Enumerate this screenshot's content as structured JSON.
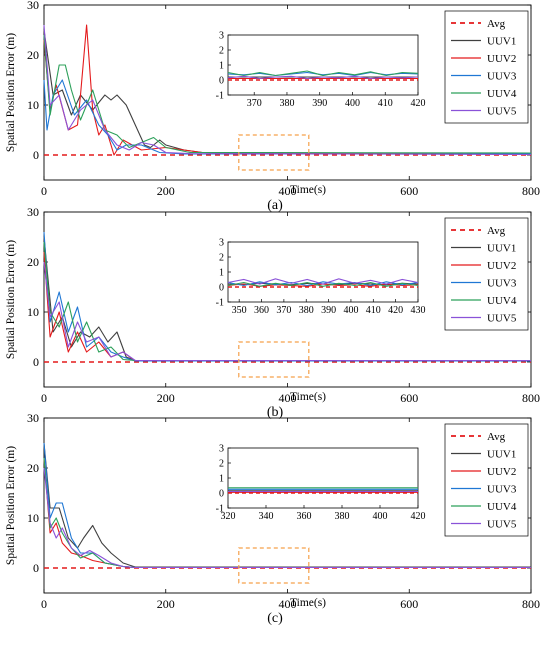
{
  "figure": {
    "ylabel": "Spatial Position Error (m)",
    "xlabel": "Time(s)"
  },
  "chart_data": [
    {
      "type": "line",
      "caption": "(a)",
      "xlim": [
        0,
        800
      ],
      "ylim": [
        -5,
        30
      ],
      "xticks": [
        0,
        200,
        400,
        600,
        800
      ],
      "yticks": [
        0,
        10,
        20,
        30
      ],
      "legend_position": "top-right",
      "highlight_box": {
        "x": [
          320,
          435
        ],
        "y": [
          -3,
          4
        ]
      },
      "series": [
        {
          "name": "Avg",
          "color": "#e41a1c",
          "dashed": true,
          "x": [
            0,
            800
          ],
          "y": [
            0,
            0
          ]
        },
        {
          "name": "UUV1",
          "color": "#404040",
          "x": [
            0,
            15,
            30,
            45,
            60,
            80,
            100,
            110,
            120,
            135,
            150,
            165,
            175,
            190,
            200,
            230,
            260,
            300,
            800
          ],
          "y": [
            25,
            12,
            13,
            8,
            12,
            9,
            12,
            11,
            12,
            10,
            6,
            2,
            1.5,
            3,
            2,
            1,
            0.5,
            0.3,
            0.3
          ]
        },
        {
          "name": "UUV2",
          "color": "#e41a1c",
          "x": [
            0,
            10,
            20,
            40,
            55,
            60,
            70,
            80,
            90,
            100,
            110,
            115,
            130,
            160,
            200,
            260,
            800
          ],
          "y": [
            23,
            9,
            14,
            5,
            6,
            12,
            26,
            9,
            4,
            6,
            2,
            0,
            3,
            1,
            1.5,
            0.5,
            0.2
          ]
        },
        {
          "name": "UUV3",
          "color": "#1f77d4",
          "x": [
            0,
            5,
            15,
            30,
            50,
            70,
            90,
            105,
            120,
            135,
            160,
            190,
            230,
            800
          ],
          "y": [
            15,
            5,
            12,
            15,
            8,
            11,
            6,
            4,
            1,
            2,
            2,
            0.5,
            0.2,
            0.2
          ]
        },
        {
          "name": "UUV4",
          "color": "#2ca05a",
          "x": [
            0,
            10,
            25,
            35,
            45,
            60,
            80,
            100,
            120,
            140,
            180,
            200,
            240,
            800
          ],
          "y": [
            24,
            8,
            18,
            18,
            13,
            7,
            13,
            5,
            4,
            1.5,
            3.5,
            1.5,
            0.5,
            0.4
          ]
        },
        {
          "name": "UUV5",
          "color": "#8a52d8",
          "x": [
            0,
            10,
            25,
            40,
            60,
            80,
            100,
            120,
            140,
            160,
            180,
            200,
            240,
            800
          ],
          "y": [
            26,
            10,
            12,
            5,
            9,
            11,
            5,
            2,
            1,
            2.5,
            2,
            0.5,
            0.3,
            0.1
          ]
        }
      ],
      "inset": {
        "xlim": [
          362,
          420
        ],
        "ylim": [
          -1,
          3
        ],
        "xticks": [
          370,
          380,
          390,
          400,
          410,
          420
        ],
        "yticks": [
          -1,
          0,
          1,
          2,
          3
        ],
        "series": [
          {
            "name": "Avg",
            "y": [
              0,
              0,
              0,
              0,
              0,
              0,
              0,
              0,
              0,
              0,
              0,
              0,
              0
            ]
          },
          {
            "name": "UUV1",
            "y": [
              0.2,
              0.2,
              0.2,
              0.2,
              0.2,
              0.2,
              0.2,
              0.2,
              0.2,
              0.2,
              0.2,
              0.2,
              0.2
            ]
          },
          {
            "name": "UUV2",
            "y": [
              0.1,
              0.1,
              0.1,
              0.1,
              0.1,
              0.1,
              0.1,
              0.1,
              0.1,
              0.1,
              0.1,
              0.1,
              0.1
            ]
          },
          {
            "name": "UUV3",
            "y": [
              0.4,
              0.35,
              0.45,
              0.3,
              0.4,
              0.5,
              0.35,
              0.45,
              0.3,
              0.5,
              0.35,
              0.45,
              0.4
            ]
          },
          {
            "name": "UUV4",
            "y": [
              0.5,
              0.3,
              0.5,
              0.3,
              0.45,
              0.6,
              0.3,
              0.5,
              0.35,
              0.55,
              0.3,
              0.5,
              0.45
            ]
          },
          {
            "name": "UUV5",
            "y": [
              0.15,
              0.25,
              0.1,
              0.2,
              0.25,
              0.1,
              0.2,
              0.15,
              0.25,
              0.1,
              0.2,
              0.15,
              0.2
            ]
          }
        ]
      }
    },
    {
      "type": "line",
      "caption": "(b)",
      "xlim": [
        0,
        800
      ],
      "ylim": [
        -5,
        30
      ],
      "xticks": [
        0,
        200,
        400,
        600,
        800
      ],
      "yticks": [
        0,
        10,
        20,
        30
      ],
      "legend_position": "top-right",
      "highlight_box": {
        "x": [
          320,
          435
        ],
        "y": [
          -3,
          4
        ]
      },
      "series": [
        {
          "name": "Avg",
          "color": "#e41a1c",
          "dashed": true,
          "x": [
            0,
            800
          ],
          "y": [
            0,
            0
          ]
        },
        {
          "name": "UUV1",
          "color": "#404040",
          "x": [
            0,
            15,
            30,
            45,
            60,
            75,
            90,
            105,
            120,
            135,
            150,
            800
          ],
          "y": [
            25,
            6,
            9,
            3,
            6,
            5,
            7,
            4,
            6,
            1,
            0.3,
            0.3
          ]
        },
        {
          "name": "UUV2",
          "color": "#e41a1c",
          "x": [
            0,
            10,
            25,
            40,
            55,
            70,
            90,
            110,
            130,
            150,
            800
          ],
          "y": [
            22,
            5,
            10,
            2,
            6,
            2,
            4,
            1,
            2,
            0.2,
            0.2
          ]
        },
        {
          "name": "UUV3",
          "color": "#1f77d4",
          "x": [
            0,
            10,
            25,
            40,
            55,
            70,
            90,
            110,
            130,
            150,
            800
          ],
          "y": [
            26,
            8,
            14,
            6,
            11,
            3,
            5,
            2,
            1,
            0.2,
            0.2
          ]
        },
        {
          "name": "UUV4",
          "color": "#2ca05a",
          "x": [
            0,
            10,
            25,
            40,
            55,
            70,
            90,
            110,
            130,
            150,
            800
          ],
          "y": [
            24,
            10,
            7,
            12,
            4,
            8,
            2,
            3,
            0.5,
            0.3,
            0.3
          ]
        },
        {
          "name": "UUV5",
          "color": "#8a52d8",
          "x": [
            0,
            10,
            25,
            40,
            55,
            70,
            90,
            110,
            130,
            150,
            800
          ],
          "y": [
            20,
            9,
            12,
            3,
            8,
            4,
            5,
            1,
            2,
            0.3,
            0.3
          ]
        }
      ],
      "inset": {
        "xlim": [
          345,
          430
        ],
        "ylim": [
          -1,
          3
        ],
        "xticks": [
          350,
          360,
          370,
          380,
          390,
          400,
          410,
          420,
          430
        ],
        "yticks": [
          -1,
          0,
          1,
          2,
          3
        ],
        "series": [
          {
            "name": "Avg",
            "y": [
              0,
              0,
              0,
              0,
              0,
              0,
              0,
              0,
              0,
              0,
              0,
              0,
              0
            ]
          },
          {
            "name": "UUV1",
            "y": [
              0.2,
              0.15,
              0.25,
              0.2,
              0.15,
              0.25,
              0.2,
              0.15,
              0.25,
              0.2,
              0.15,
              0.25,
              0.2
            ]
          },
          {
            "name": "UUV2",
            "y": [
              0.1,
              0.2,
              0.05,
              0.15,
              0.1,
              0.05,
              0.2,
              0.1,
              0.15,
              0.05,
              0.2,
              0.1,
              0.15
            ]
          },
          {
            "name": "UUV3",
            "y": [
              0.3,
              0.1,
              0.35,
              0.15,
              0.3,
              0.1,
              0.35,
              0.2,
              0.3,
              0.1,
              0.35,
              0.15,
              0.3
            ]
          },
          {
            "name": "UUV4",
            "y": [
              0.1,
              0.3,
              0.05,
              0.25,
              0.1,
              0.3,
              0.05,
              0.25,
              0.1,
              0.3,
              0.05,
              0.25,
              0.1
            ]
          },
          {
            "name": "UUV5",
            "y": [
              0.3,
              0.5,
              0.2,
              0.55,
              0.25,
              0.5,
              0.2,
              0.55,
              0.25,
              0.45,
              0.2,
              0.5,
              0.3
            ]
          }
        ]
      }
    },
    {
      "type": "line",
      "caption": "(c)",
      "xlim": [
        0,
        800
      ],
      "ylim": [
        -5,
        30
      ],
      "xticks": [
        0,
        200,
        400,
        600,
        800
      ],
      "yticks": [
        0,
        10,
        20,
        30
      ],
      "legend_position": "top-right",
      "highlight_box": {
        "x": [
          320,
          435
        ],
        "y": [
          -3,
          4
        ]
      },
      "series": [
        {
          "name": "Avg",
          "color": "#e41a1c",
          "dashed": true,
          "x": [
            0,
            800
          ],
          "y": [
            0,
            0
          ]
        },
        {
          "name": "UUV1",
          "color": "#404040",
          "x": [
            0,
            10,
            25,
            40,
            55,
            65,
            80,
            95,
            110,
            130,
            150,
            800
          ],
          "y": [
            25,
            12,
            12,
            6,
            4,
            6,
            8.5,
            5,
            3,
            1,
            0.2,
            0.2
          ]
        },
        {
          "name": "UUV2",
          "color": "#e41a1c",
          "x": [
            0,
            10,
            20,
            30,
            45,
            60,
            80,
            100,
            130,
            150,
            800
          ],
          "y": [
            22,
            7,
            9,
            5,
            3,
            2.5,
            1.5,
            1,
            0.3,
            0.1,
            0.1
          ]
        },
        {
          "name": "UUV3",
          "color": "#1f77d4",
          "x": [
            0,
            10,
            20,
            30,
            45,
            60,
            80,
            100,
            130,
            150,
            800
          ],
          "y": [
            25,
            10,
            13,
            13,
            6,
            3,
            3,
            1,
            0.3,
            0.1,
            0.1
          ]
        },
        {
          "name": "UUV4",
          "color": "#2ca05a",
          "x": [
            0,
            10,
            20,
            30,
            45,
            60,
            80,
            100,
            130,
            150,
            800
          ],
          "y": [
            22,
            8,
            10,
            7,
            4,
            2,
            3,
            1,
            0.3,
            0.1,
            0.1
          ]
        },
        {
          "name": "UUV5",
          "color": "#8a52d8",
          "x": [
            0,
            10,
            20,
            30,
            45,
            60,
            75,
            90,
            110,
            130,
            150,
            800
          ],
          "y": [
            20,
            9,
            6,
            8,
            4,
            2.5,
            3.5,
            2.5,
            1,
            0.3,
            0.1,
            0.1
          ]
        }
      ],
      "inset": {
        "xlim": [
          320,
          420
        ],
        "ylim": [
          -1,
          3
        ],
        "xticks": [
          320,
          340,
          360,
          380,
          400,
          420
        ],
        "yticks": [
          -1,
          0,
          1,
          2,
          3
        ],
        "series": [
          {
            "name": "Avg",
            "y": [
              0,
              0,
              0,
              0,
              0,
              0,
              0,
              0,
              0,
              0,
              0,
              0,
              0
            ]
          },
          {
            "name": "UUV1",
            "y": [
              0.15,
              0.15,
              0.15,
              0.15,
              0.15,
              0.15,
              0.15,
              0.15,
              0.15,
              0.15,
              0.15,
              0.15,
              0.15
            ]
          },
          {
            "name": "UUV2",
            "y": [
              0.05,
              0.05,
              0.05,
              0.05,
              0.05,
              0.05,
              0.05,
              0.05,
              0.05,
              0.05,
              0.05,
              0.05,
              0.05
            ]
          },
          {
            "name": "UUV3",
            "y": [
              0.25,
              0.25,
              0.25,
              0.25,
              0.25,
              0.25,
              0.25,
              0.25,
              0.25,
              0.25,
              0.25,
              0.25,
              0.25
            ]
          },
          {
            "name": "UUV4",
            "y": [
              0.35,
              0.35,
              0.35,
              0.35,
              0.35,
              0.35,
              0.35,
              0.35,
              0.35,
              0.35,
              0.35,
              0.35,
              0.35
            ]
          },
          {
            "name": "UUV5",
            "y": [
              0.1,
              0.1,
              0.1,
              0.1,
              0.1,
              0.1,
              0.1,
              0.1,
              0.1,
              0.1,
              0.1,
              0.1,
              0.1
            ]
          }
        ]
      }
    }
  ]
}
